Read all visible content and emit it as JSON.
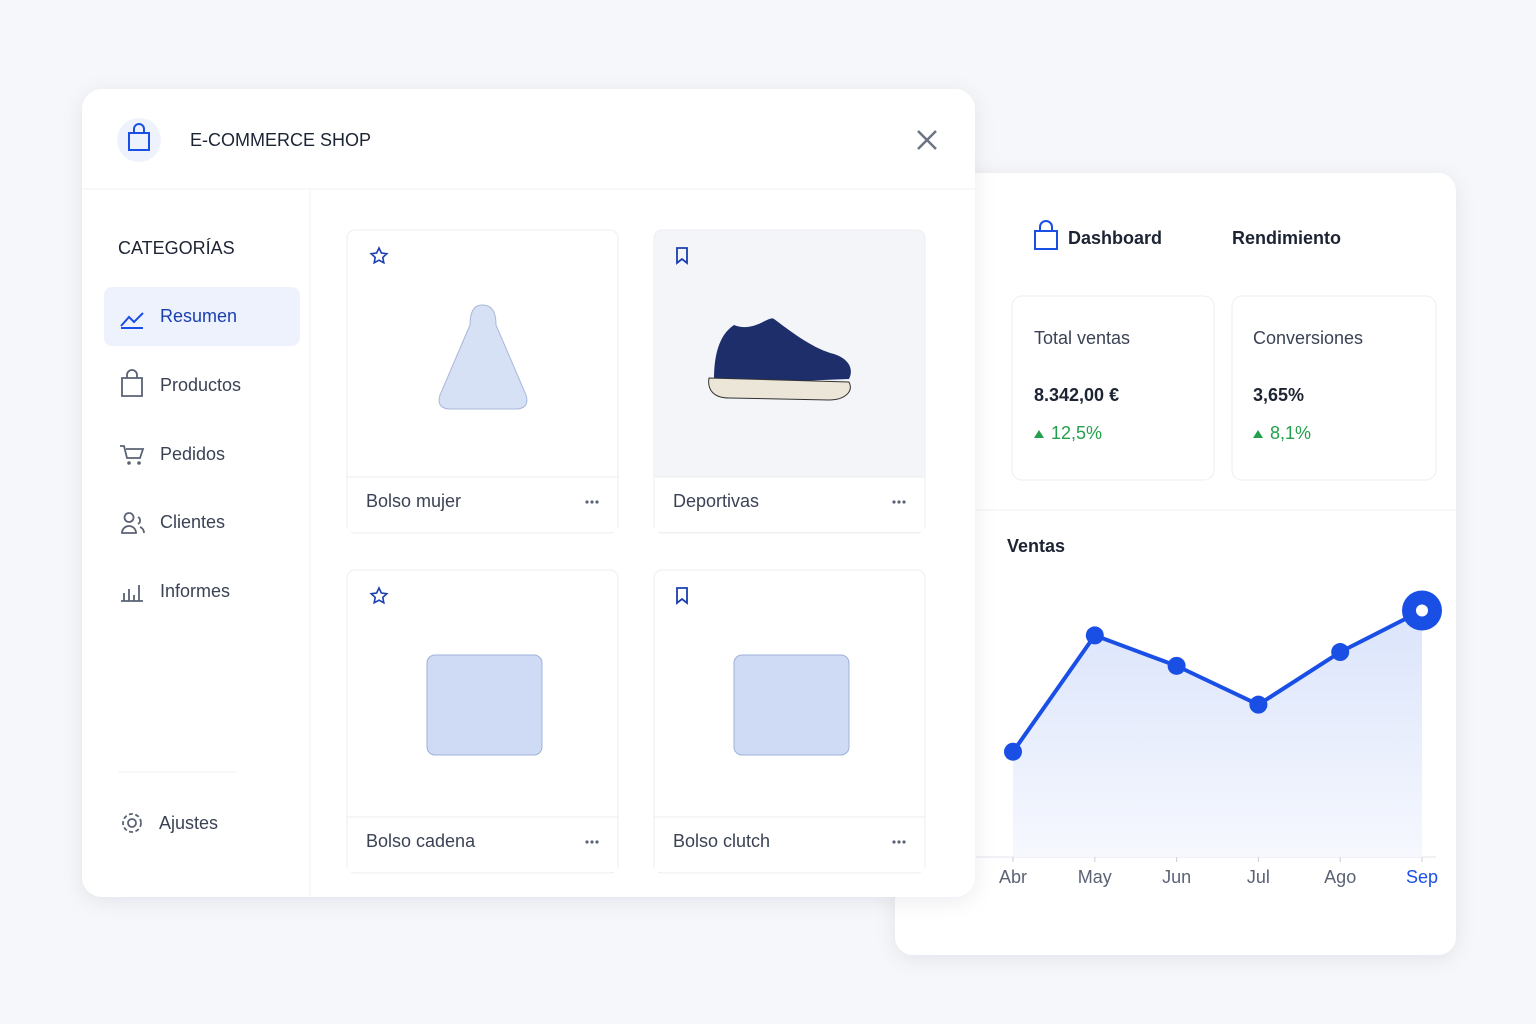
{
  "header": {
    "title": "E-COMMERCE SHOP"
  },
  "sidebar": {
    "heading": "CATEGORÍAS",
    "items": [
      "Resumen",
      "Productos",
      "Pedidos",
      "Clientes",
      "Informes"
    ],
    "settings": "Ajustes"
  },
  "products": [
    "Bolso mujer",
    "Deportivas",
    "Bolso cadena",
    "Bolso clutch"
  ],
  "dashboard": {
    "tabs": [
      "Dashboard",
      "Rendimiento"
    ],
    "stats": [
      {
        "label": "Total ventas",
        "value": "8.342,00 €",
        "change": "12,5%"
      },
      {
        "label": "Conversiones",
        "value": "3,65%",
        "change": "8,1%"
      }
    ]
  },
  "chart_data": {
    "type": "line",
    "title": "Ventas",
    "categories": [
      "Abr",
      "May",
      "Jun",
      "Jul",
      "Ago",
      "Sep"
    ],
    "values": [
      38,
      80,
      69,
      55,
      74,
      89
    ],
    "color": "#1a4fe6",
    "ylim": [
      0,
      100
    ]
  }
}
